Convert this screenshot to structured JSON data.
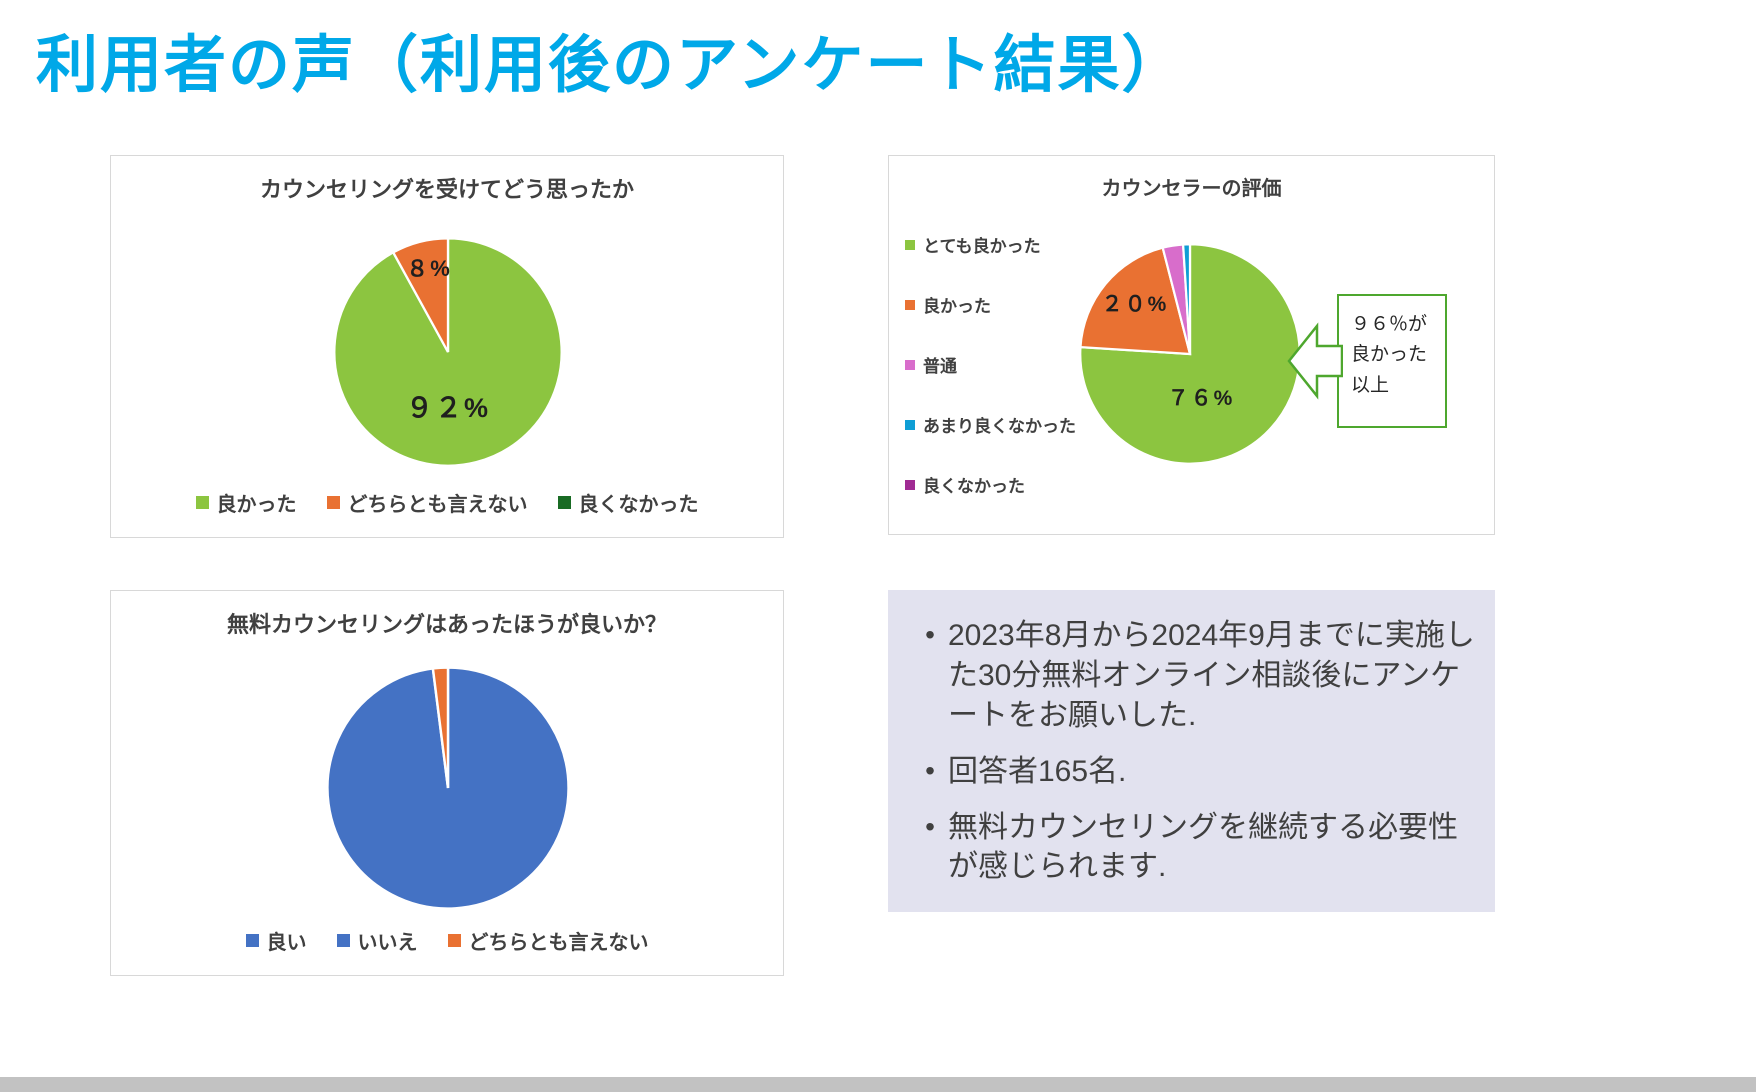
{
  "page": {
    "title": "利用者の声（利用後のアンケート結果）",
    "bullet_char": "•"
  },
  "colors": {
    "title": "#00A8E8",
    "panel_border": "#D8D8D8",
    "callout_green": "#4EA72E",
    "notes_bg": "#E2E2EF",
    "footer_bar": "#C2C2C2",
    "data_label": "#1F1F1F"
  },
  "chart_data": [
    {
      "type": "pie",
      "title": "カウンセリングを受けてどう思ったか",
      "legend_position": "bottom",
      "series": [
        {
          "label": "良かった",
          "value": 92,
          "color": "#8CC540"
        },
        {
          "label": "どちらとも言えない",
          "value": 8,
          "color": "#E97132"
        },
        {
          "label": "良くなかった",
          "value": 0,
          "color": "#196B24"
        }
      ],
      "data_labels": {
        "main": "９２%",
        "secondary": "８%"
      }
    },
    {
      "type": "pie",
      "title": "カウンセラーの評価",
      "legend_position": "left",
      "series": [
        {
          "label": "とても良かった",
          "value": 76,
          "color": "#8CC540"
        },
        {
          "label": "良かった",
          "value": 20,
          "color": "#E97132"
        },
        {
          "label": "普通",
          "value": 3,
          "color": "#D86DCB"
        },
        {
          "label": "あまり良くなかった",
          "value": 1,
          "color": "#0F9ED5"
        },
        {
          "label": "良くなかった",
          "value": 0,
          "color": "#A02B93"
        }
      ],
      "data_labels": {
        "main": "７６%",
        "secondary": "２０%"
      },
      "callout": {
        "lines": [
          "９６％が",
          "良かった",
          "以上"
        ]
      }
    },
    {
      "type": "pie",
      "title": "無料カウンセリングはあったほうが良いか？",
      "legend_position": "bottom",
      "series": [
        {
          "label": "良い",
          "value": 98,
          "color": "#4472C4"
        },
        {
          "label": "いいえ",
          "value": 0,
          "color": "#4472C4"
        },
        {
          "label": "どちらとも言えない",
          "value": 2,
          "color": "#E97132"
        }
      ],
      "data_labels": {
        "main": "",
        "secondary": ""
      }
    }
  ],
  "notes": {
    "bullets": [
      "2023年8月から2024年9月までに実施した30分無料オンライン相談後にアンケートをお願いした.",
      "回答者165名.",
      "無料カウンセリングを継続する必要性が感じられます."
    ]
  }
}
